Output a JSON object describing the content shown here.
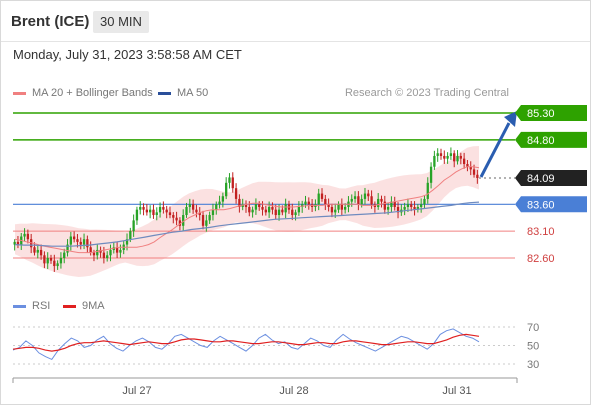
{
  "header": {
    "title": "Brent (ICE)",
    "timeframe": "30 MIN"
  },
  "timestamp": "Monday, July 31, 2023 3:58:58 AM CET",
  "legend": {
    "ma20_label": "MA 20 + Bollinger Bands",
    "ma50_label": "MA 50",
    "ma20_color": "#f08080",
    "ma50_color": "#2a4f9a",
    "credit": "Research © 2023 Trading Central"
  },
  "rsi_legend": {
    "rsi_label": "RSI",
    "ma_label": "9MA",
    "rsi_color": "#6b8fe0",
    "ma_color": "#e02020"
  },
  "colors": {
    "resistance": "#2ea200",
    "support": "#f08080",
    "pivot": "#4a7fd6",
    "last": "#222222",
    "up": "#27a327",
    "down": "#c22020"
  },
  "chart_data": [
    {
      "type": "candlestick",
      "x_ticks": [
        "Jul 27",
        "Jul 28",
        "Jul 31"
      ],
      "ylim": [
        81.9,
        85.6
      ],
      "levels": [
        {
          "value": 85.3,
          "label": "85.30",
          "kind": "resistance"
        },
        {
          "value": 84.8,
          "label": "84.80",
          "kind": "resistance"
        },
        {
          "value": 84.09,
          "label": "84.09",
          "kind": "last"
        },
        {
          "value": 83.6,
          "label": "83.60",
          "kind": "pivot"
        },
        {
          "value": 83.1,
          "label": "83.10",
          "kind": "support"
        },
        {
          "value": 82.6,
          "label": "82.60",
          "kind": "support"
        }
      ],
      "close": [
        82.9,
        82.85,
        83.0,
        83.05,
        82.95,
        82.8,
        82.7,
        82.75,
        82.65,
        82.5,
        82.6,
        82.55,
        82.45,
        82.5,
        82.6,
        82.7,
        82.85,
        83.0,
        82.95,
        82.9,
        82.85,
        82.95,
        82.8,
        82.7,
        82.65,
        82.75,
        82.7,
        82.6,
        82.65,
        82.75,
        82.8,
        82.7,
        82.75,
        82.85,
        82.95,
        83.1,
        83.3,
        83.5,
        83.55,
        83.5,
        83.45,
        83.5,
        83.4,
        83.45,
        83.55,
        83.5,
        83.45,
        83.4,
        83.35,
        83.3,
        83.2,
        83.4,
        83.55,
        83.6,
        83.5,
        83.45,
        83.4,
        83.2,
        83.3,
        83.4,
        83.5,
        83.6,
        83.65,
        83.75,
        84.0,
        84.1,
        83.9,
        83.7,
        83.55,
        83.6,
        83.55,
        83.45,
        83.5,
        83.6,
        83.55,
        83.5,
        83.45,
        83.55,
        83.5,
        83.4,
        83.5,
        83.45,
        83.6,
        83.5,
        83.4,
        83.45,
        83.55,
        83.6,
        83.65,
        83.6,
        83.55,
        83.6,
        83.8,
        83.7,
        83.6,
        83.55,
        83.45,
        83.5,
        83.6,
        83.5,
        83.55,
        83.65,
        83.7,
        83.75,
        83.6,
        83.7,
        83.8,
        83.75,
        83.6,
        83.55,
        83.7,
        83.65,
        83.5,
        83.55,
        83.65,
        83.55,
        83.45,
        83.5,
        83.55,
        83.6,
        83.55,
        83.5,
        83.55,
        83.6,
        83.7,
        84.0,
        84.3,
        84.5,
        84.55,
        84.5,
        84.45,
        84.5,
        84.55,
        84.4,
        84.5,
        84.45,
        84.35,
        84.3,
        84.25,
        84.15,
        84.09
      ],
      "ma20": [
        82.95,
        82.93,
        82.9,
        82.88,
        82.85,
        82.82,
        82.8,
        82.78,
        82.76,
        82.74,
        82.72,
        82.7,
        82.7,
        82.7,
        82.72,
        82.74,
        82.76,
        82.78,
        82.8,
        82.8,
        82.8,
        82.8,
        82.82,
        82.85,
        82.9,
        82.98,
        83.05,
        83.12,
        83.2,
        83.28,
        83.35,
        83.4,
        83.45,
        83.48,
        83.5,
        83.5,
        83.5,
        83.52,
        83.55,
        83.58,
        83.6,
        83.62,
        83.62,
        83.6,
        83.58,
        83.56,
        83.55,
        83.55,
        83.55,
        83.56,
        83.57,
        83.58,
        83.58,
        83.58,
        83.6,
        83.6,
        83.6,
        83.6,
        83.6,
        83.6,
        83.58,
        83.58,
        83.58,
        83.6,
        83.62,
        83.64,
        83.66,
        83.68,
        83.7,
        83.72,
        83.74,
        83.78,
        83.86,
        83.95,
        84.05,
        84.12,
        84.2,
        84.26,
        84.3,
        84.3,
        84.28
      ],
      "ma50": [
        82.85,
        82.84,
        82.84,
        82.83,
        82.82,
        82.82,
        82.82,
        82.83,
        82.84,
        82.86,
        82.88,
        82.9,
        82.93,
        82.96,
        82.99,
        83.02,
        83.05,
        83.08,
        83.1,
        83.13,
        83.15,
        83.17,
        83.2,
        83.22,
        83.24,
        83.26,
        83.28,
        83.3,
        83.32,
        83.33,
        83.34,
        83.35,
        83.36,
        83.37,
        83.38,
        83.39,
        83.4,
        83.41,
        83.42,
        83.43,
        83.44,
        83.46,
        83.48,
        83.5,
        83.52,
        83.54,
        83.56,
        83.58,
        83.61,
        83.63,
        83.64
      ]
    },
    {
      "type": "line",
      "ylim": [
        20,
        80
      ],
      "y_ticks": [
        "70",
        "50",
        "30"
      ],
      "series": [
        {
          "name": "RSI",
          "values": [
            45,
            48,
            55,
            50,
            42,
            38,
            35,
            45,
            52,
            58,
            55,
            48,
            50,
            56,
            60,
            52,
            47,
            44,
            50,
            55,
            58,
            54,
            48,
            46,
            52,
            60,
            62,
            58,
            54,
            50,
            48,
            55,
            60,
            56,
            52,
            48,
            44,
            50,
            58,
            62,
            56,
            52,
            54,
            48,
            46,
            52,
            58,
            55,
            50,
            48,
            56,
            62,
            57,
            53,
            50,
            47,
            44,
            48,
            52,
            56,
            60,
            58,
            54,
            50,
            46,
            52,
            62,
            66,
            68,
            64,
            60,
            58,
            54
          ]
        },
        {
          "name": "9MA",
          "values": [
            46,
            47,
            48,
            48,
            47,
            45,
            44,
            45,
            47,
            50,
            52,
            53,
            53,
            54,
            55,
            54,
            53,
            52,
            51,
            52,
            53,
            54,
            53,
            52,
            52,
            54,
            56,
            57,
            57,
            56,
            55,
            54,
            54,
            55,
            55,
            54,
            53,
            52,
            52,
            53,
            54,
            54,
            53,
            52,
            51,
            51,
            52,
            53,
            53,
            52,
            52,
            54,
            55,
            55,
            54,
            53,
            52,
            51,
            51,
            52,
            53,
            54,
            54,
            53,
            52,
            52,
            54,
            56,
            59,
            61,
            62,
            61,
            60
          ]
        }
      ]
    }
  ]
}
